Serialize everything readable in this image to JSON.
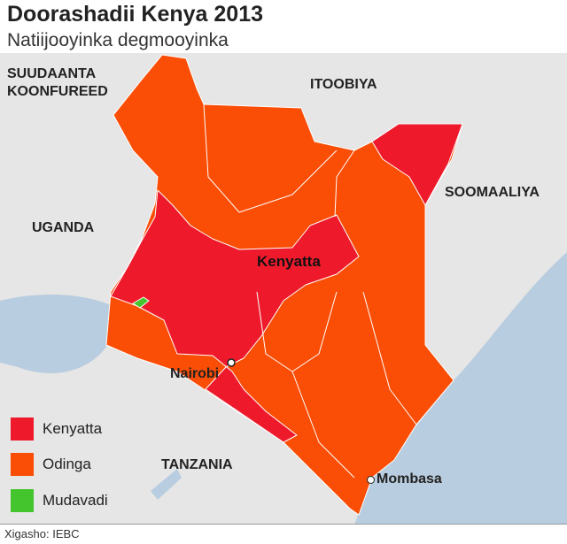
{
  "header": {
    "title": "Doorashadii Kenya 2013",
    "subtitle": "Natiijooyinka degmooyinka"
  },
  "map": {
    "colors": {
      "kenyatta": "#ee1a2c",
      "odinga": "#fa4d05",
      "mudavadi": "#44c52e",
      "land": "#e6e6e6",
      "water": "#b9cde0"
    },
    "countries": {
      "south_sudan": "SUUDAANTA KOONFUREED",
      "ethiopia": "ITOOBIYA",
      "somalia": "SOOMAALIYA",
      "uganda": "UGANDA",
      "tanzania": "TANZANIA"
    },
    "region_label": "Kenyatta",
    "cities": {
      "nairobi": "Nairobi",
      "mombasa": "Mombasa"
    }
  },
  "legend": [
    {
      "label": "Kenyatta",
      "color": "#ee1a2c"
    },
    {
      "label": "Odinga",
      "color": "#fa4d05"
    },
    {
      "label": "Mudavadi",
      "color": "#44c52e"
    }
  ],
  "source": "Xigasho: IEBC"
}
